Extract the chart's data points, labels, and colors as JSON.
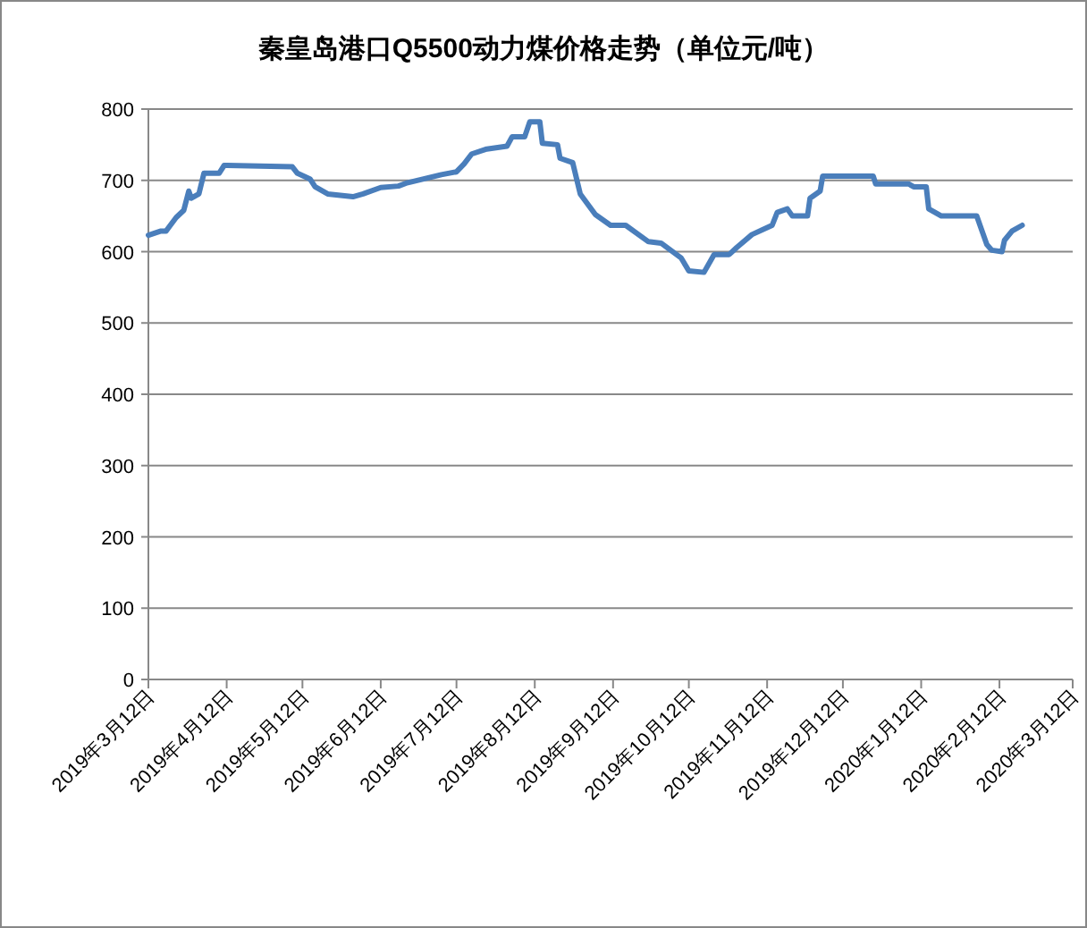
{
  "chart_data": {
    "type": "line",
    "title": "秦皇岛港口Q5500动力煤价格走势（单位元/吨）",
    "x": [
      "2019-03-12",
      "2019-03-17",
      "2019-03-19",
      "2019-03-23",
      "2019-03-26",
      "2019-03-28",
      "2019-03-29",
      "2019-04-01",
      "2019-04-03",
      "2019-04-09",
      "2019-04-11",
      "2019-05-08",
      "2019-05-10",
      "2019-05-15",
      "2019-05-17",
      "2019-05-22",
      "2019-06-01",
      "2019-06-05",
      "2019-06-12",
      "2019-06-19",
      "2019-06-22",
      "2019-06-29",
      "2019-07-06",
      "2019-07-12",
      "2019-07-15",
      "2019-07-18",
      "2019-07-24",
      "2019-08-01",
      "2019-08-03",
      "2019-08-08",
      "2019-08-10",
      "2019-08-14",
      "2019-08-15",
      "2019-08-21",
      "2019-08-22",
      "2019-08-27",
      "2019-08-30",
      "2019-09-05",
      "2019-09-11",
      "2019-09-17",
      "2019-09-26",
      "2019-10-01",
      "2019-10-09",
      "2019-10-12",
      "2019-10-18",
      "2019-10-22",
      "2019-10-28",
      "2019-10-31",
      "2019-11-06",
      "2019-11-14",
      "2019-11-16",
      "2019-11-20",
      "2019-11-22",
      "2019-11-28",
      "2019-11-29",
      "2019-12-03",
      "2019-12-04",
      "2019-12-24",
      "2019-12-25",
      "2020-01-07",
      "2020-01-09",
      "2020-01-14",
      "2020-01-15",
      "2020-01-20",
      "2020-02-03",
      "2020-02-07",
      "2020-02-09",
      "2020-02-13",
      "2020-02-14",
      "2020-02-17",
      "2020-02-21"
    ],
    "series": [
      {
        "color": "#4a7ebb",
        "values": [
          623,
          629,
          629,
          648,
          658,
          685,
          675,
          681,
          710,
          710,
          721,
          719,
          710,
          702,
          691,
          681,
          677,
          681,
          690,
          692,
          696,
          702,
          708,
          712,
          723,
          737,
          744,
          748,
          761,
          761,
          782,
          782,
          752,
          750,
          731,
          725,
          681,
          652,
          637,
          637,
          614,
          612,
          591,
          573,
          571,
          596,
          596,
          606,
          624,
          637,
          655,
          660,
          650,
          650,
          675,
          685,
          706,
          706,
          695,
          695,
          691,
          691,
          660,
          650,
          650,
          610,
          602,
          600,
          616,
          629,
          637
        ]
      }
    ],
    "xlim": [
      "2019-03-12",
      "2020-03-12"
    ],
    "xticks": [
      {
        "value": "2019-03-12",
        "label": "2019年3月12日"
      },
      {
        "value": "2019-04-12",
        "label": "2019年4月12日"
      },
      {
        "value": "2019-05-12",
        "label": "2019年5月12日"
      },
      {
        "value": "2019-06-12",
        "label": "2019年6月12日"
      },
      {
        "value": "2019-07-12",
        "label": "2019年7月12日"
      },
      {
        "value": "2019-08-12",
        "label": "2019年8月12日"
      },
      {
        "value": "2019-09-12",
        "label": "2019年9月12日"
      },
      {
        "value": "2019-10-12",
        "label": "2019年10月12日"
      },
      {
        "value": "2019-11-12",
        "label": "2019年11月12日"
      },
      {
        "value": "2019-12-12",
        "label": "2019年12月12日"
      },
      {
        "value": "2020-01-12",
        "label": "2020年1月12日"
      },
      {
        "value": "2020-02-12",
        "label": "2020年2月12日"
      },
      {
        "value": "2020-03-12",
        "label": "2020年3月12日"
      }
    ],
    "ylim": [
      0,
      800
    ],
    "yticks": [
      0,
      100,
      200,
      300,
      400,
      500,
      600,
      700,
      800
    ],
    "grid": "y",
    "marker": "none",
    "line_style": "solid"
  }
}
